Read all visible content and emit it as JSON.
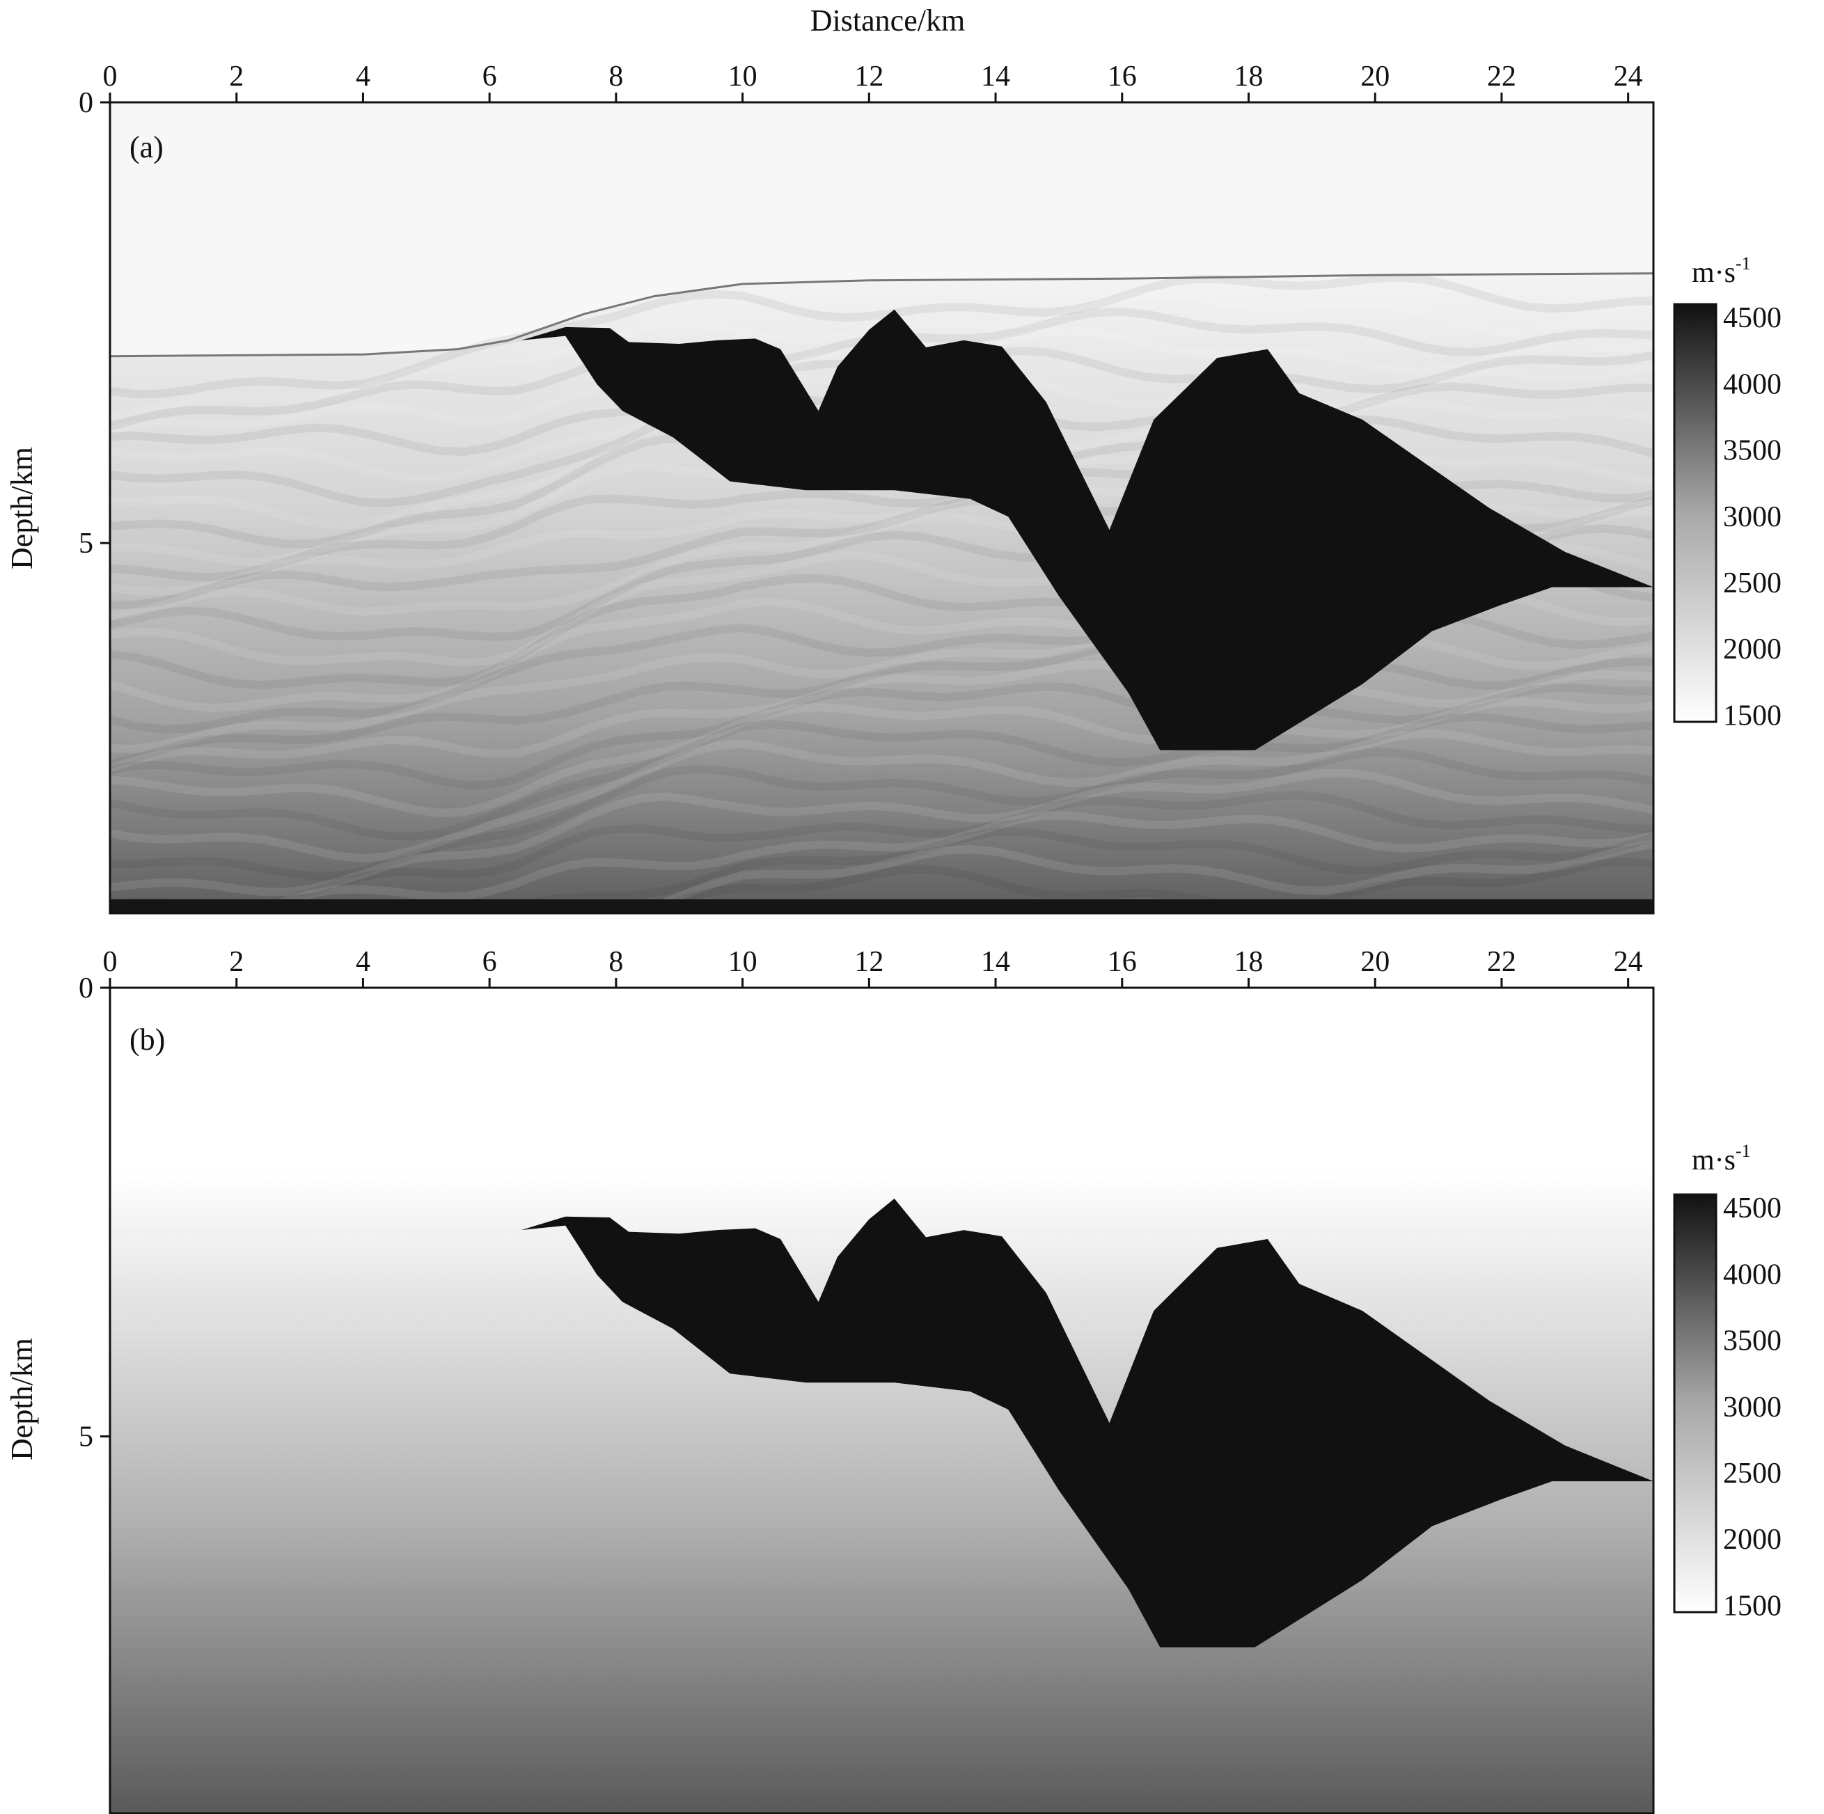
{
  "figure": {
    "xlabel": "Distance/km",
    "ylabel": "Depth/km"
  },
  "chart_data": [
    {
      "type": "heatmap",
      "panel_label": "(a)",
      "xlabel": "Distance/km",
      "ylabel": "Depth/km",
      "xlim": [
        0,
        24.4
      ],
      "ylim": [
        0,
        9.2
      ],
      "x_ticks": [
        "0",
        "2",
        "4",
        "6",
        "8",
        "10",
        "12",
        "14",
        "16",
        "18",
        "20",
        "22",
        "24"
      ],
      "y_ticks": [
        "0",
        "5"
      ],
      "colorbar": {
        "unit": "m·s",
        "unit_exponent": "-1",
        "ticks": [
          "4500",
          "4000",
          "3500",
          "3000",
          "2500",
          "2000",
          "1500"
        ],
        "range": [
          1450,
          4600
        ]
      },
      "water_velocity": 1500,
      "salt_velocity": 4500,
      "seafloor": [
        [
          0,
          2.88
        ],
        [
          4,
          2.86
        ],
        [
          5.5,
          2.8
        ],
        [
          6.3,
          2.7
        ],
        [
          7.5,
          2.4
        ],
        [
          8.6,
          2.2
        ],
        [
          10,
          2.06
        ],
        [
          12,
          2.02
        ],
        [
          16,
          2.0
        ],
        [
          20,
          1.96
        ],
        [
          24.4,
          1.94
        ]
      ],
      "salt_body": [
        [
          6.5,
          2.7
        ],
        [
          7.2,
          2.55
        ],
        [
          7.9,
          2.56
        ],
        [
          8.2,
          2.72
        ],
        [
          9.0,
          2.74
        ],
        [
          9.6,
          2.7
        ],
        [
          10.2,
          2.68
        ],
        [
          10.6,
          2.8
        ],
        [
          11.2,
          3.5
        ],
        [
          11.5,
          3.0
        ],
        [
          12.0,
          2.58
        ],
        [
          12.4,
          2.35
        ],
        [
          12.9,
          2.78
        ],
        [
          13.5,
          2.7
        ],
        [
          14.1,
          2.77
        ],
        [
          14.8,
          3.4
        ],
        [
          15.8,
          4.85
        ],
        [
          16.5,
          3.6
        ],
        [
          17.5,
          2.9
        ],
        [
          18.3,
          2.8
        ],
        [
          18.8,
          3.3
        ],
        [
          19.8,
          3.6
        ],
        [
          20.8,
          4.1
        ],
        [
          21.8,
          4.6
        ],
        [
          23,
          5.1
        ],
        [
          24.4,
          5.5
        ],
        [
          22.8,
          5.5
        ],
        [
          22,
          5.7
        ],
        [
          20.9,
          6.0
        ],
        [
          19.8,
          6.6
        ],
        [
          18.1,
          7.35
        ],
        [
          16.6,
          7.35
        ],
        [
          16.1,
          6.7
        ],
        [
          15.0,
          5.6
        ],
        [
          14.2,
          4.7
        ],
        [
          13.6,
          4.5
        ],
        [
          12.4,
          4.4
        ],
        [
          11.0,
          4.4
        ],
        [
          9.8,
          4.3
        ],
        [
          8.9,
          3.8
        ],
        [
          8.1,
          3.5
        ],
        [
          7.7,
          3.2
        ],
        [
          7.2,
          2.65
        ]
      ]
    },
    {
      "type": "heatmap",
      "panel_label": "(b)",
      "xlabel": "",
      "ylabel": "Depth/km",
      "xlim": [
        0,
        24.4
      ],
      "ylim": [
        0,
        9.2
      ],
      "x_ticks": [
        "0",
        "2",
        "4",
        "6",
        "8",
        "10",
        "12",
        "14",
        "16",
        "18",
        "20",
        "22",
        "24"
      ],
      "y_ticks": [
        "0",
        "5"
      ],
      "colorbar": {
        "unit": "m·s",
        "unit_exponent": "-1",
        "ticks": [
          "4500",
          "4000",
          "3500",
          "3000",
          "2500",
          "2000",
          "1500"
        ],
        "range": [
          1450,
          4600
        ]
      },
      "background_velocity": {
        "depth": [
          0,
          2.0,
          3.5,
          6.0,
          9.2
        ],
        "velocity": [
          1500,
          1500,
          2100,
          2900,
          3700
        ]
      },
      "salt_velocity": 4500,
      "salt_body": [
        [
          6.5,
          2.7
        ],
        [
          7.2,
          2.55
        ],
        [
          7.9,
          2.56
        ],
        [
          8.2,
          2.72
        ],
        [
          9.0,
          2.74
        ],
        [
          9.6,
          2.7
        ],
        [
          10.2,
          2.68
        ],
        [
          10.6,
          2.8
        ],
        [
          11.2,
          3.5
        ],
        [
          11.5,
          3.0
        ],
        [
          12.0,
          2.58
        ],
        [
          12.4,
          2.35
        ],
        [
          12.9,
          2.78
        ],
        [
          13.5,
          2.7
        ],
        [
          14.1,
          2.77
        ],
        [
          14.8,
          3.4
        ],
        [
          15.8,
          4.85
        ],
        [
          16.5,
          3.6
        ],
        [
          17.5,
          2.9
        ],
        [
          18.3,
          2.8
        ],
        [
          18.8,
          3.3
        ],
        [
          19.8,
          3.6
        ],
        [
          20.8,
          4.1
        ],
        [
          21.8,
          4.6
        ],
        [
          23,
          5.1
        ],
        [
          24.4,
          5.5
        ],
        [
          22.8,
          5.5
        ],
        [
          22,
          5.7
        ],
        [
          20.9,
          6.0
        ],
        [
          19.8,
          6.6
        ],
        [
          18.1,
          7.35
        ],
        [
          16.6,
          7.35
        ],
        [
          16.1,
          6.7
        ],
        [
          15.0,
          5.6
        ],
        [
          14.2,
          4.7
        ],
        [
          13.6,
          4.5
        ],
        [
          12.4,
          4.4
        ],
        [
          11.0,
          4.4
        ],
        [
          9.8,
          4.3
        ],
        [
          8.9,
          3.8
        ],
        [
          8.1,
          3.5
        ],
        [
          7.7,
          3.2
        ],
        [
          7.2,
          2.65
        ]
      ]
    }
  ]
}
